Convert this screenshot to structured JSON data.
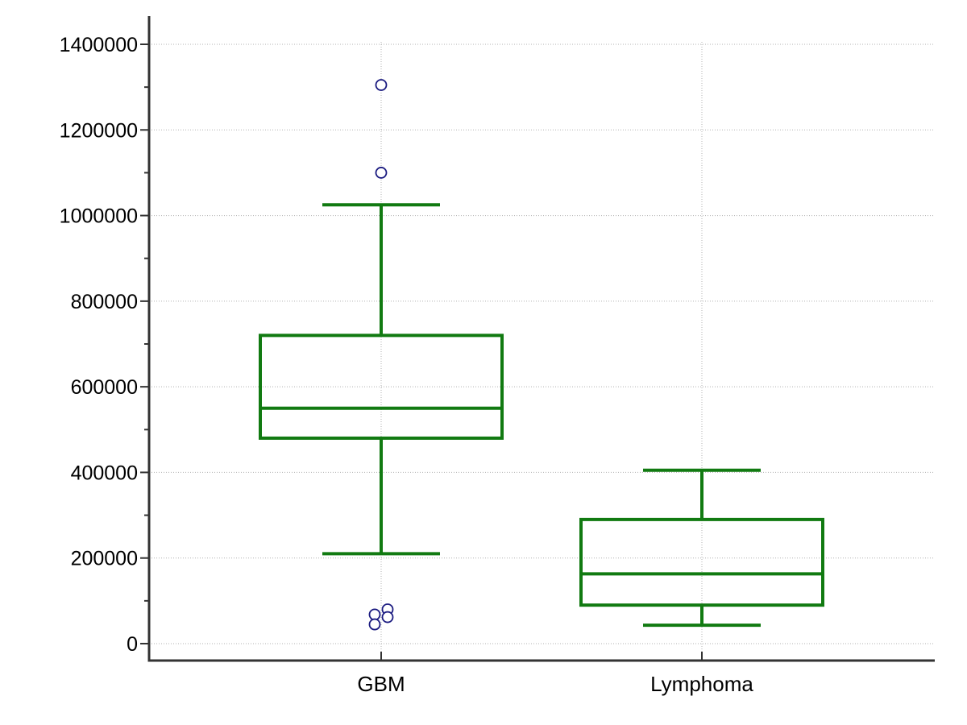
{
  "chart_data": {
    "type": "box",
    "title": "",
    "xlabel": "",
    "ylabel": "",
    "ylim": [
      -40000,
      1430000
    ],
    "yticks": [
      0,
      200000,
      400000,
      600000,
      800000,
      1000000,
      1200000,
      1400000
    ],
    "yticks_minor": [
      100000,
      300000,
      500000,
      700000,
      900000,
      1100000,
      1300000
    ],
    "grid": true,
    "box_color": "#117a11",
    "outlier_color": "#1a1a80",
    "categories": [
      "GBM",
      "Lymphoma"
    ],
    "series": [
      {
        "name": "GBM",
        "whisker_low": 210000,
        "q1": 480000,
        "median": 550000,
        "q3": 720000,
        "whisker_high": 1025000,
        "outliers": [
          1305000,
          1100000,
          80000,
          68000,
          62000,
          45000
        ]
      },
      {
        "name": "Lymphoma",
        "whisker_low": 43000,
        "q1": 90000,
        "median": 163000,
        "q3": 290000,
        "whisker_high": 405000,
        "outliers": []
      }
    ]
  }
}
